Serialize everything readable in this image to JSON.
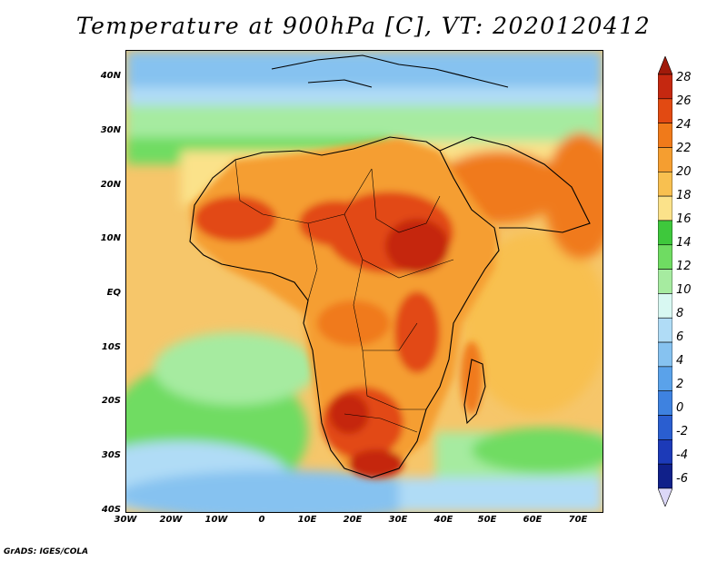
{
  "title": "Temperature at 900hPa [C], VT: 2020120412",
  "footer": "GrADS: IGES/COLA",
  "y_labels": [
    "40N",
    "30N",
    "20N",
    "10N",
    "EQ",
    "10S",
    "20S",
    "30S",
    "40S"
  ],
  "x_labels": [
    "30W",
    "20W",
    "10W",
    "0",
    "10E",
    "20E",
    "30E",
    "40E",
    "50E",
    "60E",
    "70E"
  ],
  "colorbar": {
    "labels": [
      "28",
      "26",
      "24",
      "22",
      "20",
      "18",
      "16",
      "14",
      "12",
      "10",
      "8",
      "6",
      "4",
      "2",
      "0",
      "-2",
      "-4",
      "-6"
    ],
    "colors": [
      "#a01a0a",
      "#c52810",
      "#e24a12",
      "#f07a1a",
      "#f59e30",
      "#f8c050",
      "#fbe28a",
      "#3ec83c",
      "#6fdc62",
      "#a6eba0",
      "#d8f8f2",
      "#b0dcf6",
      "#86c2f0",
      "#5aa2ea",
      "#3e82e0",
      "#2a5ed0",
      "#1c3ab8",
      "#10208a",
      "#dcd8f8"
    ]
  }
}
